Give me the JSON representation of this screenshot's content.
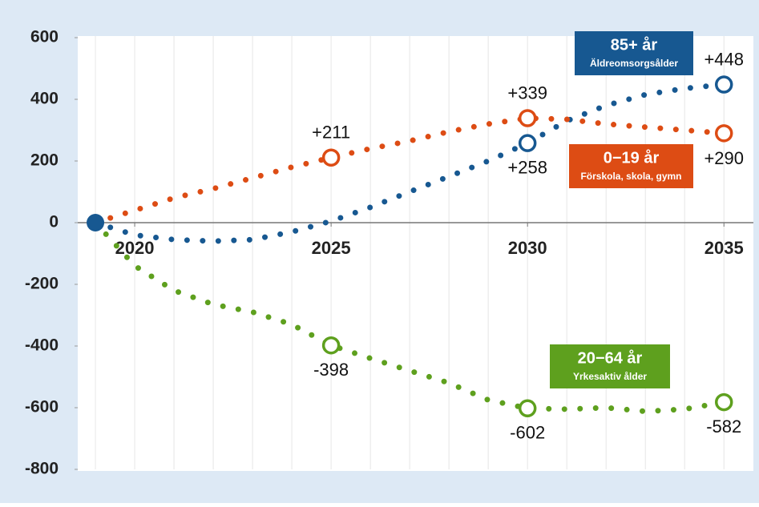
{
  "chart_data": {
    "type": "line",
    "x": [
      2019,
      2020,
      2021,
      2022,
      2023,
      2024,
      2025,
      2026,
      2027,
      2028,
      2029,
      2030,
      2031,
      2032,
      2033,
      2034,
      2035
    ],
    "xlim": [
      2018.55,
      2035.75
    ],
    "xticks": [
      2020,
      2025,
      2030,
      2035
    ],
    "ylim": [
      -800,
      600
    ],
    "yticks": [
      600,
      400,
      200,
      0,
      -200,
      -400,
      -600,
      -800
    ],
    "grid": true,
    "series": [
      {
        "name": "85+ år",
        "description": "Äldreomsorgsålder",
        "color": "#175891",
        "values": [
          0,
          -40,
          -55,
          -60,
          -55,
          -30,
          5,
          50,
          100,
          150,
          200,
          258,
          330,
          380,
          415,
          435,
          448
        ],
        "value_labels": [
          null,
          null,
          null,
          null,
          null,
          null,
          null,
          null,
          null,
          null,
          null,
          "+258",
          null,
          null,
          null,
          null,
          "+448"
        ]
      },
      {
        "name": "0−19 år",
        "description": "Förskola, skola, gymn",
        "color": "#dd4c14",
        "values": [
          0,
          40,
          80,
          110,
          145,
          180,
          211,
          240,
          265,
          295,
          320,
          339,
          335,
          320,
          310,
          300,
          290
        ],
        "value_labels": [
          null,
          null,
          null,
          null,
          null,
          null,
          "+211",
          null,
          null,
          null,
          null,
          "+339",
          null,
          null,
          null,
          null,
          "+290"
        ]
      },
      {
        "name": "20−64 år",
        "description": "Yrkesaktiv ålder",
        "color": "#5ea01e",
        "values": [
          0,
          -140,
          -220,
          -265,
          -290,
          -330,
          -398,
          -440,
          -480,
          -520,
          -575,
          -602,
          -605,
          -600,
          -612,
          -605,
          -582
        ],
        "value_labels": [
          null,
          null,
          null,
          null,
          null,
          null,
          "-398",
          null,
          null,
          null,
          null,
          "-602",
          null,
          null,
          null,
          null,
          "-582"
        ]
      }
    ]
  }
}
